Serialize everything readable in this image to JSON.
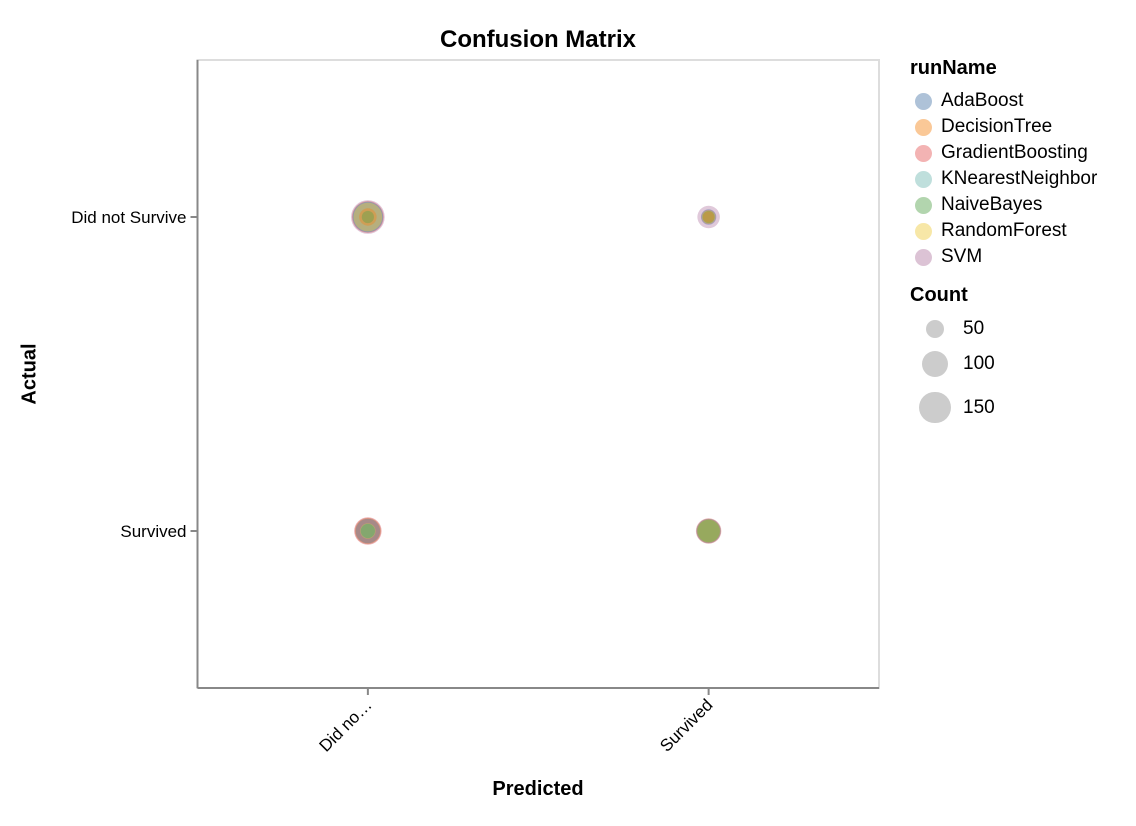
{
  "chart_data": {
    "type": "scatter",
    "title": "Confusion Matrix",
    "xlabel": "Predicted",
    "ylabel": "Actual",
    "x_categories": [
      "Did not Survive",
      "Survived"
    ],
    "x_tick_labels": [
      "Did no…",
      "Survived"
    ],
    "y_categories": [
      "Did not Survive",
      "Survived"
    ],
    "y_tick_labels": [
      "Did not Survive",
      "Survived"
    ],
    "grid": false,
    "mark_opacity": 0.4,
    "axis_color": "#888888",
    "view_border_color": "#dddddd",
    "run_legend": {
      "title": "runName",
      "items": [
        {
          "name": "AdaBoost",
          "color": "#4c78a8"
        },
        {
          "name": "DecisionTree",
          "color": "#f58518"
        },
        {
          "name": "GradientBoosting",
          "color": "#e45756"
        },
        {
          "name": "KNearestNeighbor",
          "color": "#72b7b2"
        },
        {
          "name": "NaiveBayes",
          "color": "#54a24b"
        },
        {
          "name": "RandomForest",
          "color": "#eeca3b"
        },
        {
          "name": "SVM",
          "color": "#b279a2"
        }
      ]
    },
    "size_legend": {
      "title": "Count",
      "values": [
        50,
        100,
        150
      ],
      "symbol_color": "#cccccc",
      "radius_per_sqrt_count": 1.3
    },
    "cells": [
      {
        "predicted": "Did not Survive",
        "actual": "Did not Survive",
        "bubbles": [
          {
            "run": "SVM",
            "count": 168
          },
          {
            "run": "GradientBoosting",
            "count": 150
          },
          {
            "run": "AdaBoost",
            "count": 139
          },
          {
            "run": "KNearestNeighbor",
            "count": 130
          },
          {
            "run": "RandomForest",
            "count": 121
          },
          {
            "run": "DecisionTree",
            "count": 45
          },
          {
            "run": "NaiveBayes",
            "count": 22
          }
        ]
      },
      {
        "predicted": "Survived",
        "actual": "Did not Survive",
        "bubbles": [
          {
            "run": "SVM",
            "count": 75
          },
          {
            "run": "AdaBoost",
            "count": 35
          },
          {
            "run": "GradientBoosting",
            "count": 30
          },
          {
            "run": "KNearestNeighbor",
            "count": 27
          },
          {
            "run": "RandomForest",
            "count": 26
          },
          {
            "run": "NaiveBayes",
            "count": 22
          },
          {
            "run": "DecisionTree",
            "count": 19
          }
        ]
      },
      {
        "predicted": "Did not Survive",
        "actual": "Survived",
        "bubbles": [
          {
            "run": "GradientBoosting",
            "count": 112
          },
          {
            "run": "SVM",
            "count": 104
          },
          {
            "run": "DecisionTree",
            "count": 98
          },
          {
            "run": "AdaBoost",
            "count": 89
          },
          {
            "run": "RandomForest",
            "count": 35
          },
          {
            "run": "KNearestNeighbor",
            "count": 31
          },
          {
            "run": "NaiveBayes",
            "count": 30
          }
        ]
      },
      {
        "predicted": "Survived",
        "actual": "Survived",
        "bubbles": [
          {
            "run": "GradientBoosting",
            "count": 96
          },
          {
            "run": "AdaBoost",
            "count": 89
          },
          {
            "run": "SVM",
            "count": 85
          },
          {
            "run": "DecisionTree",
            "count": 83
          },
          {
            "run": "KNearestNeighbor",
            "count": 80
          },
          {
            "run": "RandomForest",
            "count": 75
          },
          {
            "run": "NaiveBayes",
            "count": 75
          }
        ]
      }
    ]
  }
}
